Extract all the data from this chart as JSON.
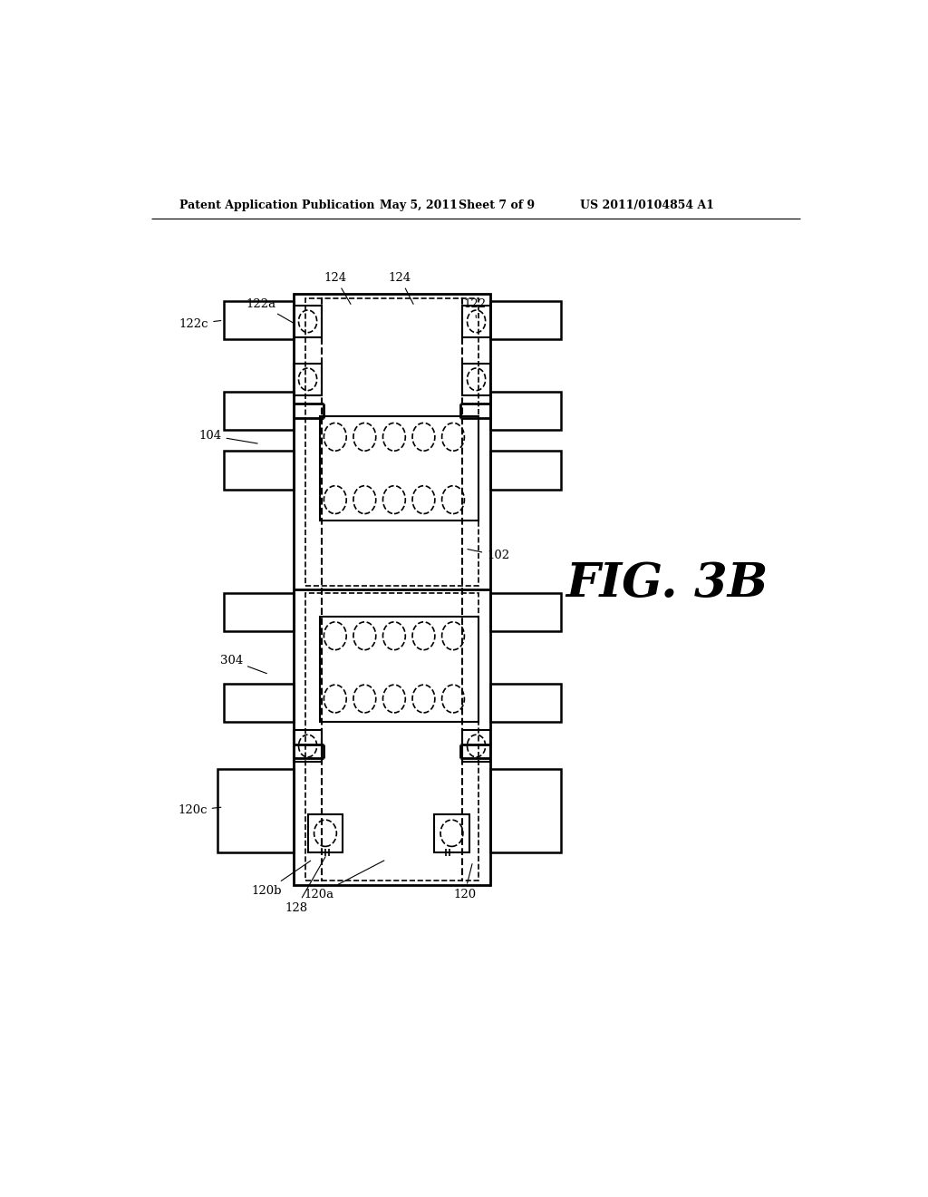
{
  "bg_color": "#ffffff",
  "header_text": "Patent Application Publication",
  "header_date": "May 5, 2011",
  "header_sheet": "Sheet 7 of 9",
  "header_patent": "US 2011/0104854 A1",
  "fig_label": "FIG. 3B",
  "lw_main": 2.0,
  "lw_inner": 1.5,
  "lw_dashed": 1.2,
  "lw_thin": 1.0
}
